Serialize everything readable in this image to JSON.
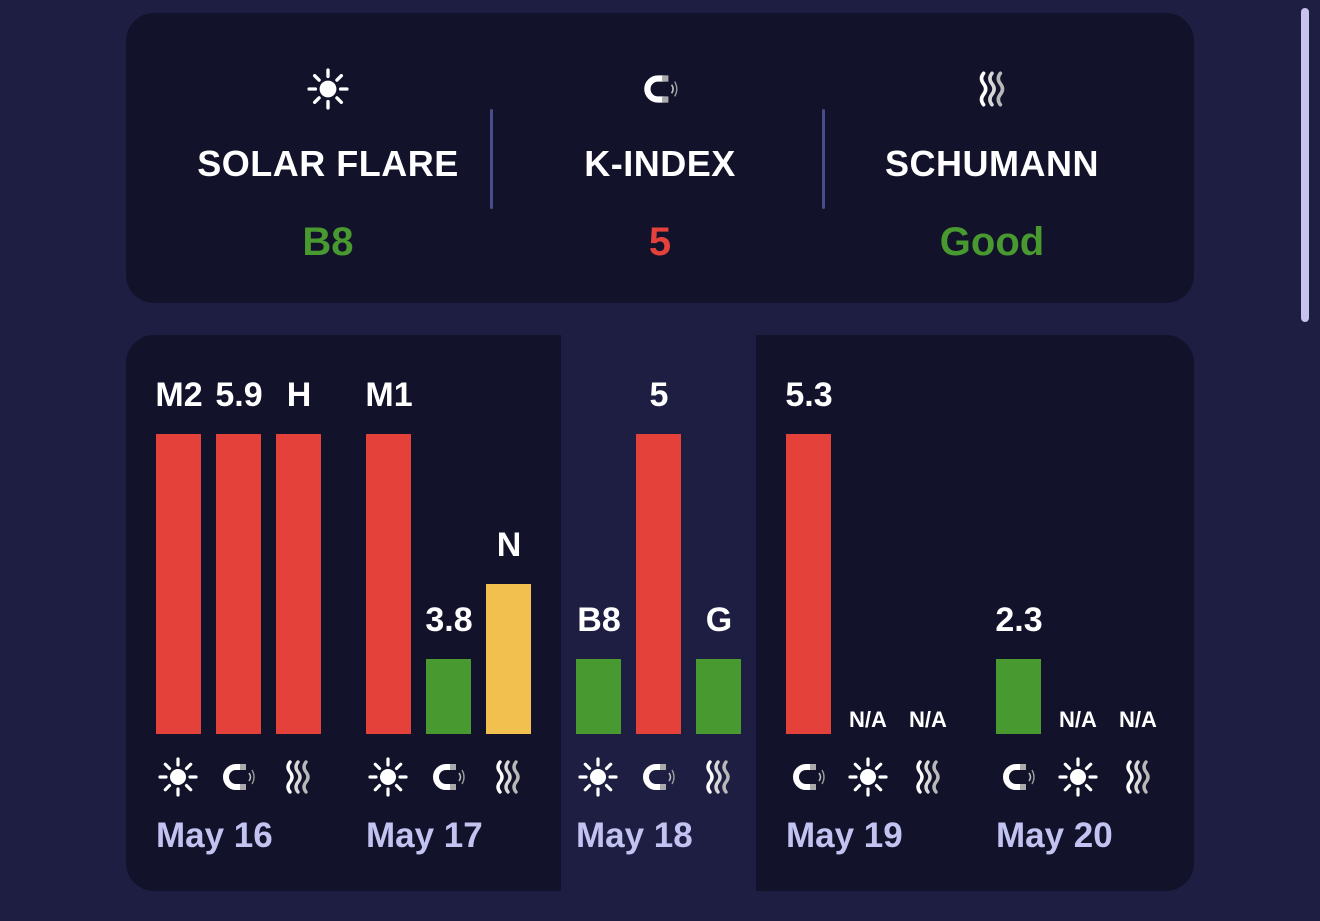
{
  "colors": {
    "background": "#1e1e42",
    "card": "#12122b",
    "highlight": "#1e1e42",
    "red": "#e4413b",
    "green": "#48992f",
    "yellow": "#f2c04f",
    "date": "#c3c3f2"
  },
  "summary": [
    {
      "icon": "sun-icon",
      "label": "SOLAR FLARE",
      "value": "B8",
      "color": "#48992f"
    },
    {
      "icon": "magnet-icon",
      "label": "K-INDEX",
      "value": "5",
      "color": "#e4413b"
    },
    {
      "icon": "waves-icon",
      "label": "SCHUMANN",
      "value": "Good",
      "color": "#48992f"
    }
  ],
  "forecast": {
    "selected_day": "May 18",
    "days": [
      {
        "date": "May 16",
        "metrics": [
          {
            "icon": "sun-icon",
            "label": "M2",
            "level": 1.0,
            "color": "#e4413b"
          },
          {
            "icon": "magnet-icon",
            "label": "5.9",
            "level": 1.0,
            "color": "#e4413b"
          },
          {
            "icon": "waves-icon",
            "label": "H",
            "level": 1.0,
            "color": "#e4413b"
          }
        ]
      },
      {
        "date": "May 17",
        "metrics": [
          {
            "icon": "sun-icon",
            "label": "M1",
            "level": 1.0,
            "color": "#e4413b"
          },
          {
            "icon": "magnet-icon",
            "label": "3.8",
            "level": 0.25,
            "color": "#48992f"
          },
          {
            "icon": "waves-icon",
            "label": "N",
            "level": 0.5,
            "color": "#f2c04f"
          }
        ]
      },
      {
        "date": "May 18",
        "metrics": [
          {
            "icon": "sun-icon",
            "label": "B8",
            "level": 0.25,
            "color": "#48992f"
          },
          {
            "icon": "magnet-icon",
            "label": "5",
            "level": 1.0,
            "color": "#e4413b"
          },
          {
            "icon": "waves-icon",
            "label": "G",
            "level": 0.25,
            "color": "#48992f"
          }
        ]
      },
      {
        "date": "May 19",
        "metrics": [
          {
            "icon": "magnet-icon",
            "label": "5.3",
            "level": 1.0,
            "color": "#e4413b"
          },
          {
            "icon": "sun-icon",
            "label": "N/A",
            "level": 0,
            "color": ""
          },
          {
            "icon": "waves-icon",
            "label": "N/A",
            "level": 0,
            "color": ""
          }
        ]
      },
      {
        "date": "May 20",
        "metrics": [
          {
            "icon": "magnet-icon",
            "label": "2.3",
            "level": 0.25,
            "color": "#48992f"
          },
          {
            "icon": "sun-icon",
            "label": "N/A",
            "level": 0,
            "color": ""
          },
          {
            "icon": "waves-icon",
            "label": "N/A",
            "level": 0,
            "color": ""
          }
        ]
      }
    ]
  }
}
